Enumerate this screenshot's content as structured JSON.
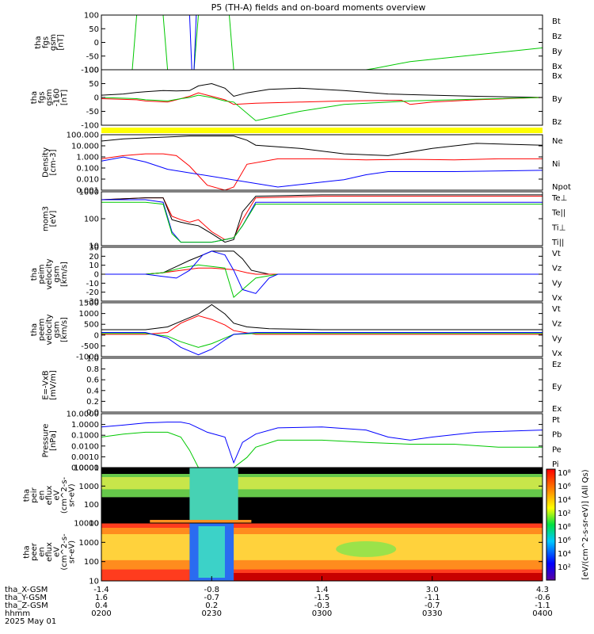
{
  "title": "P5 (TH-A) fields and on-board moments overview",
  "colors": {
    "black": "#000000",
    "red": "#ff0000",
    "green": "#00c800",
    "blue": "#0000ff",
    "yellow": "#ffff00"
  },
  "chart_data": [
    {
      "type": "line",
      "id": "fgs",
      "ylabel": [
        "tha",
        "fgs",
        "gsm",
        "[nT]"
      ],
      "ylim": [
        -100,
        100
      ],
      "yticks": [
        "100",
        "50",
        "0",
        "-50",
        "-100"
      ],
      "legend": [
        {
          "label": "Bt",
          "color": "black"
        },
        {
          "label": "Bz",
          "color": "red"
        },
        {
          "label": "By",
          "color": "green"
        },
        {
          "label": "Bx",
          "color": "blue"
        }
      ],
      "series": [
        {
          "name": "By",
          "color": "green",
          "x": [
            0,
            7,
            8,
            14,
            15,
            21,
            22,
            29,
            30,
            60,
            62,
            70,
            100
          ],
          "y": [
            -100,
            -100,
            100,
            100,
            -100,
            -100,
            100,
            100,
            -100,
            -100,
            -95,
            -70,
            -20
          ]
        },
        {
          "name": "Bx",
          "color": "blue",
          "x": [
            20,
            20.5,
            21,
            21.5
          ],
          "y": [
            100,
            -100,
            -100,
            100
          ]
        }
      ]
    },
    {
      "type": "line",
      "id": "fgs_dsl",
      "ylabel": [
        "tha",
        "fgs",
        "gsm",
        "-160",
        "[nT]"
      ],
      "ylim": [
        -120,
        120
      ],
      "yticks": [
        "100",
        "50",
        "0",
        "-50",
        "-100"
      ],
      "legend": [
        {
          "label": "Bx",
          "color": "black"
        },
        {
          "label": "By",
          "color": "green"
        },
        {
          "label": "Bz",
          "color": "red"
        }
      ],
      "series": [
        {
          "name": "Bt",
          "color": "black",
          "x": [
            0,
            5,
            8,
            10,
            14,
            17,
            20,
            22,
            25,
            28,
            30,
            33,
            38,
            45,
            55,
            65,
            75,
            85,
            100
          ],
          "y": [
            10,
            15,
            22,
            25,
            30,
            28,
            30,
            50,
            60,
            40,
            5,
            20,
            35,
            40,
            30,
            15,
            10,
            5,
            0
          ]
        },
        {
          "name": "Bz",
          "color": "red",
          "x": [
            0,
            8,
            10,
            15,
            18,
            20,
            22,
            25,
            28,
            30,
            35,
            45,
            55,
            68,
            70,
            75,
            85,
            100
          ],
          "y": [
            -5,
            -10,
            -15,
            -20,
            -5,
            5,
            20,
            5,
            -10,
            -30,
            -25,
            -20,
            -15,
            -12,
            -30,
            -20,
            -10,
            0
          ]
        },
        {
          "name": "By",
          "color": "green",
          "x": [
            0,
            8,
            10,
            15,
            18,
            20,
            22,
            25,
            28,
            30,
            35,
            45,
            55,
            70,
            80,
            100
          ],
          "y": [
            0,
            -5,
            -10,
            -15,
            -5,
            0,
            10,
            0,
            -15,
            -20,
            -100,
            -60,
            -30,
            -15,
            -10,
            0
          ]
        }
      ],
      "band": {
        "color": "yellow"
      }
    },
    {
      "type": "line",
      "id": "density",
      "ylabel": [
        "Density",
        "[cm-3]"
      ],
      "log": true,
      "ylim": [
        0.001,
        200
      ],
      "yticks": [
        "100.000",
        "10.000",
        "1.000",
        "0.100",
        "0.010",
        "0.001"
      ],
      "legend": [
        {
          "label": "Ne",
          "color": "red"
        },
        {
          "label": "Ni",
          "color": "black"
        },
        {
          "label": "Npot",
          "color": "blue"
        }
      ],
      "series": [
        {
          "name": "Ni",
          "color": "black",
          "x": [
            0,
            5,
            10,
            15,
            20,
            25,
            30,
            33,
            35,
            45,
            55,
            65,
            75,
            85,
            100
          ],
          "y": [
            50,
            80,
            100,
            120,
            150,
            150,
            150,
            60,
            20,
            10,
            3,
            2,
            10,
            30,
            20
          ]
        },
        {
          "name": "Ne",
          "color": "red",
          "x": [
            0,
            5,
            10,
            14,
            17,
            20,
            24,
            28,
            30,
            33,
            40,
            50,
            60,
            70,
            80,
            90,
            100
          ],
          "y": [
            1,
            2,
            3,
            3,
            2,
            0.2,
            0.003,
            0.001,
            0.002,
            0.3,
            1,
            1,
            0.8,
            0.9,
            0.8,
            1,
            1
          ]
        },
        {
          "name": "Npot",
          "color": "blue",
          "x": [
            0,
            5,
            10,
            15,
            40,
            50,
            55,
            60,
            65,
            80,
            100
          ],
          "y": [
            0.6,
            1.5,
            0.5,
            0.1,
            0.002,
            0.006,
            0.01,
            0.03,
            0.06,
            0.06,
            0.08
          ]
        }
      ]
    },
    {
      "type": "line",
      "id": "temp",
      "ylabel": [
        "mom3",
        "[eV]"
      ],
      "log": true,
      "ylim": [
        10,
        5000
      ],
      "yticks": [
        "1000",
        "100",
        "10"
      ],
      "legend": [
        {
          "label": "Te⊥",
          "color": "red"
        },
        {
          "label": "Te||",
          "color": "black"
        },
        {
          "label": "Ti⊥",
          "color": "blue"
        },
        {
          "label": "Ti||",
          "color": "green"
        }
      ],
      "series": [
        {
          "name": "Te",
          "color": "red",
          "x": [
            0,
            10,
            14,
            16,
            18,
            20,
            22,
            25,
            28,
            30,
            32,
            35,
            50,
            70,
            100
          ],
          "y": [
            2000,
            2500,
            2500,
            300,
            200,
            150,
            200,
            50,
            20,
            25,
            200,
            2500,
            3000,
            3000,
            3000
          ]
        },
        {
          "name": "Te||",
          "color": "black",
          "x": [
            0,
            10,
            14,
            16,
            18,
            20,
            22,
            25,
            28,
            30,
            32,
            35,
            50,
            70,
            100
          ],
          "y": [
            2000,
            2500,
            2500,
            200,
            150,
            120,
            100,
            40,
            15,
            20,
            500,
            3000,
            3500,
            3500,
            3500
          ]
        },
        {
          "name": "Ti",
          "color": "blue",
          "x": [
            0,
            10,
            14,
            16,
            18,
            20,
            22,
            25,
            28,
            30,
            32,
            35,
            50,
            70,
            100
          ],
          "y": [
            2000,
            2000,
            1500,
            50,
            15,
            15,
            15,
            15,
            20,
            25,
            100,
            1500,
            1500,
            1500,
            1500
          ]
        },
        {
          "name": "Ti||",
          "color": "green",
          "x": [
            0,
            10,
            14,
            16,
            18,
            20,
            22,
            25,
            28,
            30,
            32,
            35,
            50,
            70,
            100
          ],
          "y": [
            1500,
            1500,
            1200,
            40,
            15,
            15,
            15,
            15,
            20,
            25,
            100,
            1200,
            1200,
            1200,
            1200
          ]
        }
      ]
    },
    {
      "type": "line",
      "id": "peim",
      "ylabel": [
        "tha",
        "peim",
        "velocity",
        "gsm",
        "[km/s]"
      ],
      "ylim": [
        -35,
        35
      ],
      "yticks": [
        "30",
        "20",
        "10",
        "0",
        "-10",
        "-20",
        "-30"
      ],
      "legend": [
        {
          "label": "Vt",
          "color": "black"
        },
        {
          "label": "Vz",
          "color": "red"
        },
        {
          "label": "Vy",
          "color": "green"
        },
        {
          "label": "Vx",
          "color": "blue"
        }
      ],
      "series": [
        {
          "name": "Vt",
          "color": "black",
          "x": [
            0,
            10,
            14,
            17,
            20,
            23,
            25,
            27,
            30,
            32,
            34,
            38,
            45,
            60,
            80,
            100
          ],
          "y": [
            0,
            0,
            2,
            10,
            18,
            25,
            30,
            30,
            30,
            20,
            5,
            0,
            0,
            0,
            0,
            0
          ]
        },
        {
          "name": "Vz",
          "color": "red",
          "x": [
            0,
            10,
            14,
            18,
            22,
            25,
            30,
            33,
            35,
            40,
            60,
            100
          ],
          "y": [
            0,
            0,
            2,
            5,
            8,
            8,
            6,
            2,
            0,
            0,
            0,
            0
          ]
        },
        {
          "name": "Vy",
          "color": "green",
          "x": [
            0,
            10,
            14,
            18,
            22,
            25,
            28,
            30,
            32,
            35,
            40,
            60,
            100
          ],
          "y": [
            0,
            0,
            2,
            8,
            12,
            10,
            8,
            -30,
            -20,
            -5,
            0,
            0,
            0
          ]
        },
        {
          "name": "Vx",
          "color": "blue",
          "x": [
            0,
            10,
            14,
            17,
            20,
            23,
            25,
            28,
            30,
            32,
            35,
            38,
            40,
            60,
            100
          ],
          "y": [
            0,
            0,
            -3,
            -5,
            5,
            25,
            30,
            25,
            5,
            -20,
            -25,
            -5,
            0,
            0,
            0
          ]
        }
      ]
    },
    {
      "type": "line",
      "id": "peem",
      "ylabel": [
        "tha",
        "peem",
        "velocity",
        "gsm",
        "[km/s]"
      ],
      "ylim": [
        -1300,
        1600
      ],
      "yticks": [
        "1500",
        "1000",
        "500",
        "0",
        "-500",
        "-1000"
      ],
      "legend": [
        {
          "label": "Vt",
          "color": "black"
        },
        {
          "label": "Vz",
          "color": "red"
        },
        {
          "label": "Vy",
          "color": "green"
        },
        {
          "label": "Vx",
          "color": "blue"
        }
      ],
      "series": [
        {
          "name": "Vt",
          "color": "black",
          "x": [
            0,
            10,
            15,
            18,
            22,
            25,
            28,
            30,
            33,
            38,
            50,
            70,
            100
          ],
          "y": [
            150,
            150,
            300,
            600,
            1000,
            1500,
            1000,
            500,
            300,
            200,
            150,
            150,
            150
          ]
        },
        {
          "name": "Vz",
          "color": "red",
          "x": [
            0,
            10,
            15,
            18,
            22,
            25,
            28,
            30,
            35,
            50,
            100
          ],
          "y": [
            -100,
            -100,
            0,
            500,
            900,
            700,
            400,
            100,
            -100,
            -100,
            -100
          ]
        },
        {
          "name": "Vy",
          "color": "green",
          "x": [
            0,
            10,
            15,
            18,
            22,
            25,
            28,
            30,
            35,
            50,
            100
          ],
          "y": [
            -50,
            -50,
            -200,
            -500,
            -800,
            -600,
            -300,
            -100,
            -50,
            -50,
            -50
          ]
        },
        {
          "name": "Vx",
          "color": "blue",
          "x": [
            0,
            10,
            15,
            18,
            22,
            25,
            28,
            30,
            35,
            50,
            100
          ],
          "y": [
            0,
            0,
            -300,
            -800,
            -1200,
            -900,
            -400,
            -100,
            0,
            0,
            0
          ]
        }
      ]
    },
    {
      "type": "line",
      "id": "efield",
      "ylabel": [
        "E=-VxB",
        "[mV/m]"
      ],
      "ylim": [
        0,
        1
      ],
      "yticks": [
        "1.0",
        "0.8",
        "0.6",
        "0.4",
        "0.2",
        "0.0"
      ],
      "legend": [
        {
          "label": "Ez",
          "color": "red"
        },
        {
          "label": "Ey",
          "color": "green"
        },
        {
          "label": "Ex",
          "color": "blue"
        }
      ],
      "series": []
    },
    {
      "type": "line",
      "id": "pressure",
      "ylabel": [
        "Pressure",
        "[nPa]"
      ],
      "log": true,
      "ylim": [
        0.0001,
        20
      ],
      "yticks": [
        "10.0000",
        "1.0000",
        "0.1000",
        "0.0100",
        "0.0010",
        "0.0001"
      ],
      "legend": [
        {
          "label": "Pt",
          "color": "black"
        },
        {
          "label": "Pb",
          "color": "red"
        },
        {
          "label": "Pe",
          "color": "green"
        },
        {
          "label": "Pi",
          "color": "blue"
        }
      ],
      "series": [
        {
          "name": "Pi",
          "color": "blue",
          "x": [
            0,
            5,
            10,
            15,
            18,
            20,
            24,
            28,
            30,
            32,
            35,
            40,
            50,
            60,
            65,
            70,
            75,
            85,
            100
          ],
          "y": [
            1,
            1.5,
            2.5,
            3,
            3,
            2,
            0.3,
            0.1,
            0.0003,
            0.03,
            0.2,
            0.8,
            1,
            0.5,
            0.1,
            0.05,
            0.1,
            0.3,
            0.5
          ]
        },
        {
          "name": "Pe",
          "color": "green",
          "x": [
            0,
            5,
            10,
            15,
            18,
            20,
            22,
            25,
            28,
            30,
            33,
            35,
            40,
            50,
            60,
            70,
            80,
            90,
            100
          ],
          "y": [
            0.1,
            0.2,
            0.3,
            0.3,
            0.1,
            0.005,
            0.0001,
            0.0001,
            0.0001,
            0.0001,
            0.001,
            0.01,
            0.05,
            0.05,
            0.03,
            0.02,
            0.02,
            0.01,
            0.01
          ]
        }
      ]
    },
    {
      "type": "heatmap",
      "id": "peir",
      "ylabel": [
        "tha",
        "peir",
        "en",
        "eflux",
        "eV",
        "(cm^2-s-",
        "sr-eV)"
      ],
      "log": true,
      "ylim": [
        7,
        15000
      ],
      "yticks": [
        "10000",
        "1000",
        "100",
        "10"
      ]
    },
    {
      "type": "heatmap",
      "id": "peer",
      "ylabel": [
        "tha",
        "peer",
        "en",
        "eflux",
        "eV",
        "(cm^2-s-",
        "sr-eV)"
      ],
      "log": true,
      "ylim": [
        7,
        15000
      ],
      "yticks": [
        "10000",
        "1000",
        "100",
        "10"
      ]
    }
  ],
  "colorbar": {
    "ticks": [
      "10⁸",
      "10⁶",
      "10⁴",
      "10²",
      "10⁸",
      "10⁶",
      "10⁴",
      "10²"
    ],
    "label": "[eV/(cm^2-s-sr-eV)] (All Qs)"
  },
  "xaxis": {
    "rows": [
      {
        "label": "tha_X-GSM",
        "values": [
          "-1.4",
          "-0.8",
          "1.4",
          "3.0",
          "4.3"
        ]
      },
      {
        "label": "tha_Y-GSM",
        "values": [
          "1.6",
          "-0.7",
          "-1.5",
          "-1.1",
          "-0.6"
        ]
      },
      {
        "label": "tha_Z-GSM",
        "values": [
          "0.4",
          "0.2",
          "-0.3",
          "-0.7",
          "-1.1"
        ]
      },
      {
        "label": "hhmm",
        "values": [
          "0200",
          "0230",
          "0300",
          "0330",
          "0400"
        ]
      }
    ],
    "date": "2025 May 01",
    "xlim": [
      0,
      100
    ]
  }
}
